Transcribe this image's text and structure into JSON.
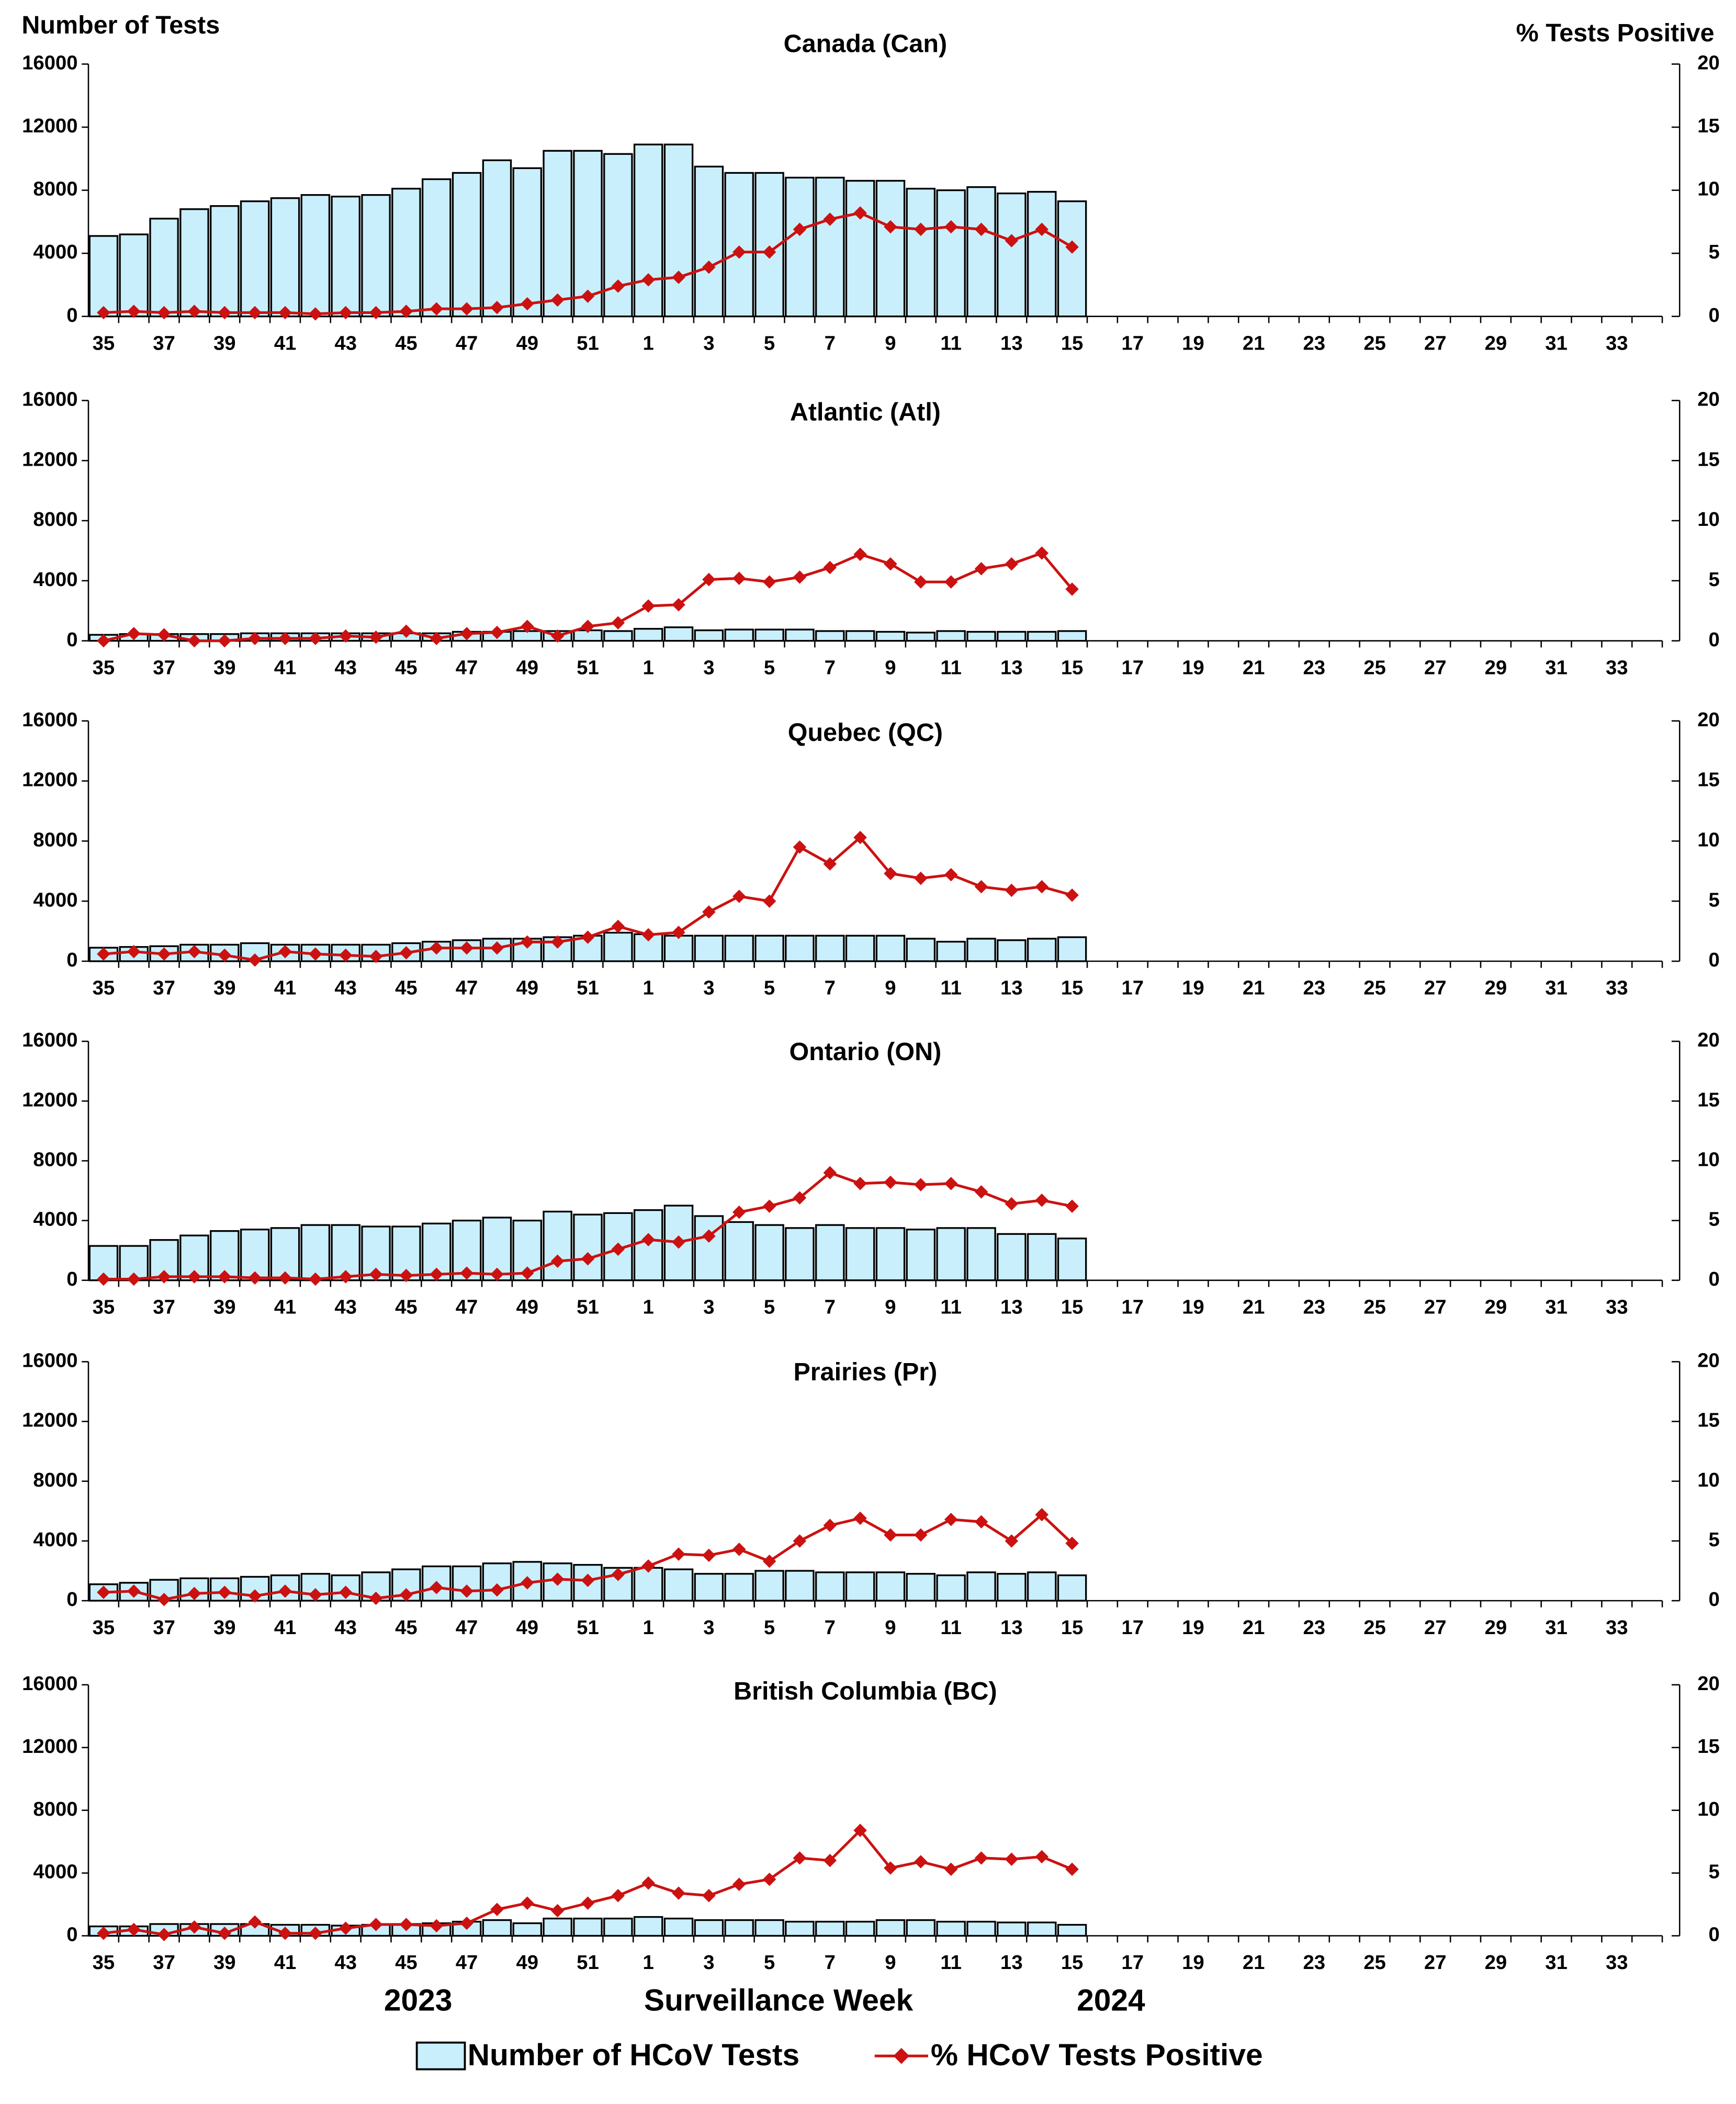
{
  "chart_data": [
    {
      "type": "bar",
      "title": "Canada (Can)",
      "ylabel": "Number of Tests",
      "y2label": "% Tests Positive",
      "categories": [
        "35",
        null,
        "37",
        null,
        "39",
        null,
        "41",
        null,
        "43",
        null,
        "45",
        null,
        "47",
        null,
        "49",
        null,
        "51",
        null,
        "1",
        null,
        "3",
        null,
        "5",
        null,
        "7",
        null,
        "9",
        null,
        "11",
        null,
        "13",
        null,
        "15",
        null,
        "17",
        null,
        "19",
        null,
        "21",
        null,
        "23",
        null,
        "25",
        null,
        "27",
        null,
        "29",
        null,
        "31",
        null,
        "33",
        null
      ],
      "ylim": [
        0,
        16000
      ],
      "yticks": [
        0,
        4000,
        8000,
        12000,
        16000
      ],
      "y2lim": [
        0,
        20
      ],
      "y2ticks": [
        0,
        5,
        10,
        15,
        20
      ],
      "series": [
        {
          "name": "Number of HCoV Tests",
          "type": "bar",
          "color": "#c9effc",
          "values": [
            5100,
            5200,
            6200,
            6800,
            7000,
            7300,
            7500,
            7700,
            7600,
            7700,
            8100,
            8700,
            9100,
            9900,
            9400,
            10500,
            10500,
            10300,
            10900,
            10900,
            9500,
            9100,
            9100,
            8800,
            8800,
            8600,
            8600,
            8100,
            8000,
            8200,
            7800,
            7900,
            7300,
            null,
            null,
            null,
            null,
            null,
            null,
            null,
            null,
            null,
            null,
            null,
            null,
            null,
            null,
            null,
            null,
            null,
            null,
            null
          ]
        },
        {
          "name": "% HCoV Tests Positive",
          "type": "line",
          "axis": "y2",
          "color": "#cc1111",
          "values": [
            0.3,
            0.4,
            0.3,
            0.4,
            0.3,
            0.3,
            0.3,
            0.2,
            0.3,
            0.3,
            0.4,
            0.6,
            0.6,
            0.7,
            1.0,
            1.3,
            1.6,
            2.4,
            2.9,
            3.1,
            3.9,
            5.1,
            5.1,
            6.9,
            7.7,
            8.2,
            7.1,
            6.9,
            7.1,
            6.9,
            6.0,
            6.9,
            5.5,
            null,
            null,
            null,
            null,
            null,
            null,
            null,
            null,
            null,
            null,
            null,
            null,
            null,
            null,
            null,
            null,
            null,
            null,
            null
          ]
        }
      ]
    },
    {
      "type": "bar",
      "title": "Atlantic (Atl)",
      "categories": [
        "35",
        null,
        "37",
        null,
        "39",
        null,
        "41",
        null,
        "43",
        null,
        "45",
        null,
        "47",
        null,
        "49",
        null,
        "51",
        null,
        "1",
        null,
        "3",
        null,
        "5",
        null,
        "7",
        null,
        "9",
        null,
        "11",
        null,
        "13",
        null,
        "15",
        null,
        "17",
        null,
        "19",
        null,
        "21",
        null,
        "23",
        null,
        "25",
        null,
        "27",
        null,
        "29",
        null,
        "31",
        null,
        "33",
        null
      ],
      "ylim": [
        0,
        16000
      ],
      "yticks": [
        0,
        4000,
        8000,
        12000,
        16000
      ],
      "y2lim": [
        0,
        20
      ],
      "y2ticks": [
        0,
        5,
        10,
        15,
        20
      ],
      "series": [
        {
          "type": "bar",
          "color": "#c9effc",
          "values": [
            400,
            450,
            450,
            450,
            450,
            500,
            500,
            500,
            500,
            500,
            500,
            500,
            600,
            600,
            650,
            650,
            700,
            650,
            800,
            900,
            700,
            750,
            750,
            750,
            650,
            650,
            600,
            550,
            650,
            600,
            600,
            600,
            650,
            null,
            null,
            null,
            null,
            null,
            null,
            null,
            null,
            null,
            null,
            null,
            null,
            null,
            null,
            null,
            null,
            null,
            null,
            null
          ]
        },
        {
          "type": "line",
          "axis": "y2",
          "color": "#cc1111",
          "values": [
            0,
            0.6,
            0.5,
            0,
            0,
            0.2,
            0.2,
            0.2,
            0.4,
            0.3,
            0.8,
            0.2,
            0.6,
            0.7,
            1.2,
            0.4,
            1.2,
            1.5,
            2.9,
            3.0,
            5.1,
            5.2,
            4.9,
            5.3,
            6.1,
            7.2,
            6.4,
            4.9,
            4.9,
            6.0,
            6.4,
            7.3,
            4.3,
            null,
            null,
            null,
            null,
            null,
            null,
            null,
            null,
            null,
            null,
            null,
            null,
            null,
            null,
            null,
            null,
            null,
            null,
            null
          ]
        }
      ]
    },
    {
      "type": "bar",
      "title": "Quebec (QC)",
      "categories": [
        "35",
        null,
        "37",
        null,
        "39",
        null,
        "41",
        null,
        "43",
        null,
        "45",
        null,
        "47",
        null,
        "49",
        null,
        "51",
        null,
        "1",
        null,
        "3",
        null,
        "5",
        null,
        "7",
        null,
        "9",
        null,
        "11",
        null,
        "13",
        null,
        "15",
        null,
        "17",
        null,
        "19",
        null,
        "21",
        null,
        "23",
        null,
        "25",
        null,
        "27",
        null,
        "29",
        null,
        "31",
        null,
        "33",
        null
      ],
      "ylim": [
        0,
        16000
      ],
      "yticks": [
        0,
        4000,
        8000,
        12000,
        16000
      ],
      "y2lim": [
        0,
        20
      ],
      "y2ticks": [
        0,
        5,
        10,
        15,
        20
      ],
      "series": [
        {
          "type": "bar",
          "color": "#c9effc",
          "values": [
            900,
            950,
            1000,
            1100,
            1100,
            1200,
            1100,
            1100,
            1100,
            1100,
            1200,
            1300,
            1400,
            1500,
            1500,
            1600,
            1700,
            1900,
            1800,
            1700,
            1700,
            1700,
            1700,
            1700,
            1700,
            1700,
            1700,
            1500,
            1300,
            1500,
            1400,
            1500,
            1600,
            null,
            null,
            null,
            null,
            null,
            null,
            null,
            null,
            null,
            null,
            null,
            null,
            null,
            null,
            null,
            null,
            null,
            null,
            null
          ]
        },
        {
          "type": "line",
          "axis": "y2",
          "color": "#cc1111",
          "values": [
            0.6,
            0.8,
            0.6,
            0.8,
            0.5,
            0.1,
            0.8,
            0.6,
            0.5,
            0.4,
            0.7,
            1.1,
            1.1,
            1.1,
            1.6,
            1.6,
            2.0,
            2.9,
            2.2,
            2.4,
            4.1,
            5.4,
            5.0,
            9.5,
            8.1,
            10.3,
            7.3,
            6.9,
            7.2,
            6.2,
            5.9,
            6.2,
            5.5,
            null,
            null,
            null,
            null,
            null,
            null,
            null,
            null,
            null,
            null,
            null,
            null,
            null,
            null,
            null,
            null,
            null,
            null,
            null
          ]
        }
      ]
    },
    {
      "type": "bar",
      "title": "Ontario (ON)",
      "categories": [
        "35",
        null,
        "37",
        null,
        "39",
        null,
        "41",
        null,
        "43",
        null,
        "45",
        null,
        "47",
        null,
        "49",
        null,
        "51",
        null,
        "1",
        null,
        "3",
        null,
        "5",
        null,
        "7",
        null,
        "9",
        null,
        "11",
        null,
        "13",
        null,
        "15",
        null,
        "17",
        null,
        "19",
        null,
        "21",
        null,
        "23",
        null,
        "25",
        null,
        "27",
        null,
        "29",
        null,
        "31",
        null,
        "33",
        null
      ],
      "ylim": [
        0,
        16000
      ],
      "yticks": [
        0,
        4000,
        8000,
        12000,
        16000
      ],
      "y2lim": [
        0,
        20
      ],
      "y2ticks": [
        0,
        5,
        10,
        15,
        20
      ],
      "series": [
        {
          "type": "bar",
          "color": "#c9effc",
          "values": [
            2300,
            2300,
            2700,
            3000,
            3300,
            3400,
            3500,
            3700,
            3700,
            3600,
            3600,
            3800,
            4000,
            4200,
            4000,
            4600,
            4400,
            4500,
            4700,
            5000,
            4300,
            3900,
            3700,
            3500,
            3700,
            3500,
            3500,
            3400,
            3500,
            3500,
            3100,
            3100,
            2800,
            null,
            null,
            null,
            null,
            null,
            null,
            null,
            null,
            null,
            null,
            null,
            null,
            null,
            null,
            null,
            null,
            null,
            null,
            null
          ]
        },
        {
          "type": "line",
          "axis": "y2",
          "color": "#cc1111",
          "values": [
            0.1,
            0.1,
            0.3,
            0.3,
            0.3,
            0.2,
            0.2,
            0.1,
            0.3,
            0.5,
            0.4,
            0.5,
            0.6,
            0.5,
            0.6,
            1.6,
            1.8,
            2.6,
            3.4,
            3.2,
            3.7,
            5.7,
            6.2,
            6.9,
            9.0,
            8.1,
            8.2,
            8.0,
            8.1,
            7.4,
            6.4,
            6.7,
            6.2,
            null,
            null,
            null,
            null,
            null,
            null,
            null,
            null,
            null,
            null,
            null,
            null,
            null,
            null,
            null,
            null,
            null,
            null,
            null
          ]
        }
      ]
    },
    {
      "type": "bar",
      "title": "Prairies (Pr)",
      "categories": [
        "35",
        null,
        "37",
        null,
        "39",
        null,
        "41",
        null,
        "43",
        null,
        "45",
        null,
        "47",
        null,
        "49",
        null,
        "51",
        null,
        "1",
        null,
        "3",
        null,
        "5",
        null,
        "7",
        null,
        "9",
        null,
        "11",
        null,
        "13",
        null,
        "15",
        null,
        "17",
        null,
        "19",
        null,
        "21",
        null,
        "23",
        null,
        "25",
        null,
        "27",
        null,
        "29",
        null,
        "31",
        null,
        "33",
        null
      ],
      "ylim": [
        0,
        16000
      ],
      "yticks": [
        0,
        4000,
        8000,
        12000,
        16000
      ],
      "y2lim": [
        0,
        20
      ],
      "y2ticks": [
        0,
        5,
        10,
        15,
        20
      ],
      "series": [
        {
          "type": "bar",
          "color": "#c9effc",
          "values": [
            1100,
            1200,
            1400,
            1500,
            1500,
            1600,
            1700,
            1800,
            1700,
            1900,
            2100,
            2300,
            2300,
            2500,
            2600,
            2500,
            2400,
            2200,
            2200,
            2100,
            1800,
            1800,
            2000,
            2000,
            1900,
            1900,
            1900,
            1800,
            1700,
            1900,
            1800,
            1900,
            1700,
            null,
            null,
            null,
            null,
            null,
            null,
            null,
            null,
            null,
            null,
            null,
            null,
            null,
            null,
            null,
            null,
            null,
            null,
            null
          ]
        },
        {
          "type": "line",
          "axis": "y2",
          "color": "#cc1111",
          "values": [
            0.7,
            0.8,
            0.1,
            0.6,
            0.7,
            0.4,
            0.8,
            0.5,
            0.7,
            0.2,
            0.5,
            1.1,
            0.8,
            0.9,
            1.5,
            1.8,
            1.7,
            2.2,
            2.9,
            3.9,
            3.8,
            4.3,
            3.3,
            5.0,
            6.3,
            6.9,
            5.5,
            5.5,
            6.8,
            6.6,
            5.0,
            7.2,
            4.8,
            null,
            null,
            null,
            null,
            null,
            null,
            null,
            null,
            null,
            null,
            null,
            null,
            null,
            null,
            null,
            null,
            null,
            null,
            null
          ]
        }
      ]
    },
    {
      "type": "bar",
      "title": "British Columbia (BC)",
      "xlabel": "Surveillance Week",
      "annotations": [
        "2023",
        "2024"
      ],
      "categories": [
        "35",
        null,
        "37",
        null,
        "39",
        null,
        "41",
        null,
        "43",
        null,
        "45",
        null,
        "47",
        null,
        "49",
        null,
        "51",
        null,
        "1",
        null,
        "3",
        null,
        "5",
        null,
        "7",
        null,
        "9",
        null,
        "11",
        null,
        "13",
        null,
        "15",
        null,
        "17",
        null,
        "19",
        null,
        "21",
        null,
        "23",
        null,
        "25",
        null,
        "27",
        null,
        "29",
        null,
        "31",
        null,
        "33",
        null
      ],
      "ylim": [
        0,
        16000
      ],
      "yticks": [
        0,
        4000,
        8000,
        12000,
        16000
      ],
      "y2lim": [
        0,
        20
      ],
      "y2ticks": [
        0,
        5,
        10,
        15,
        20
      ],
      "series": [
        {
          "type": "bar",
          "color": "#c9effc",
          "values": [
            600,
            600,
            750,
            750,
            750,
            750,
            700,
            700,
            650,
            700,
            750,
            800,
            900,
            1000,
            800,
            1100,
            1100,
            1100,
            1200,
            1100,
            1000,
            1000,
            1000,
            900,
            900,
            900,
            1000,
            1000,
            900,
            900,
            850,
            850,
            700,
            null,
            null,
            null,
            null,
            null,
            null,
            null,
            null,
            null,
            null,
            null,
            null,
            null,
            null,
            null,
            null,
            null,
            null,
            null
          ]
        },
        {
          "type": "line",
          "axis": "y2",
          "color": "#cc1111",
          "values": [
            0.2,
            0.5,
            0.1,
            0.7,
            0.2,
            1.1,
            0.2,
            0.2,
            0.6,
            0.9,
            0.9,
            0.8,
            1.0,
            2.1,
            2.6,
            2.0,
            2.6,
            3.2,
            4.2,
            3.4,
            3.2,
            4.1,
            4.5,
            6.2,
            6.0,
            8.4,
            5.4,
            5.9,
            5.3,
            6.2,
            6.1,
            6.3,
            5.3,
            null,
            null,
            null,
            null,
            null,
            null,
            null,
            null,
            null,
            null,
            null,
            null,
            null,
            null,
            null,
            null,
            null,
            null,
            null
          ]
        }
      ]
    }
  ]
}
